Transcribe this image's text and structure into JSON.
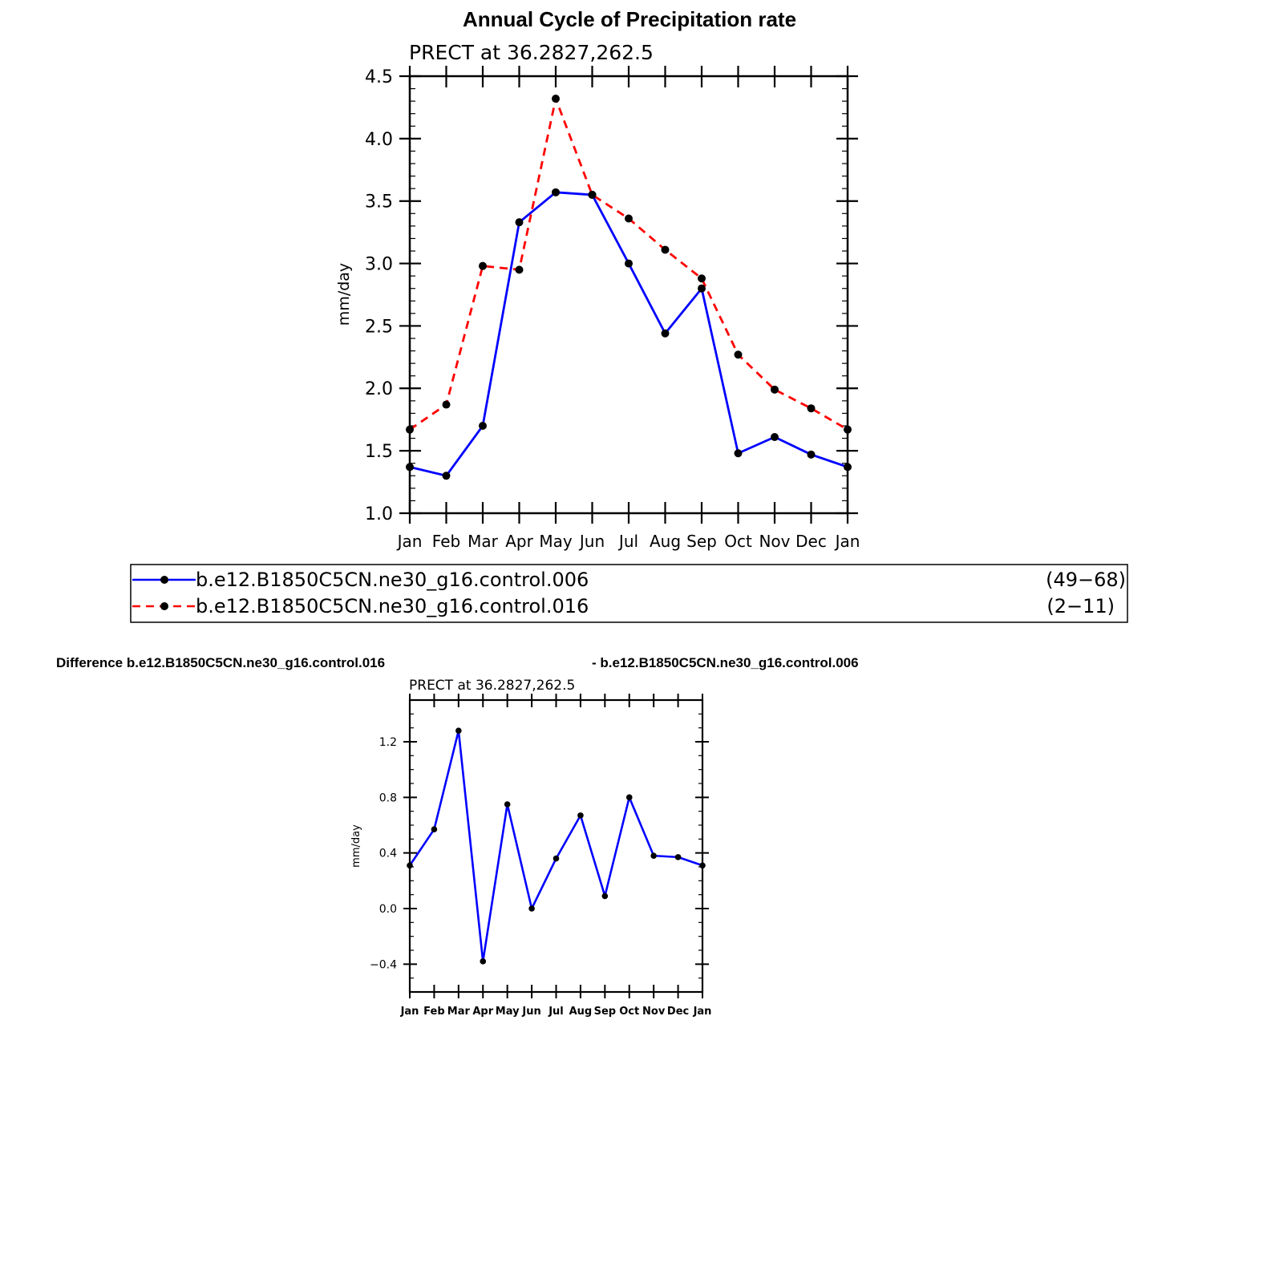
{
  "page": {
    "title": "Annual Cycle of Precipitation rate"
  },
  "chart_data": [
    {
      "type": "line",
      "subtitle": "PRECT at 36.2827,262.5",
      "xlabel": "",
      "ylabel": "mm/day",
      "categories": [
        "Jan",
        "Feb",
        "Mar",
        "Apr",
        "May",
        "Jun",
        "Jul",
        "Aug",
        "Sep",
        "Oct",
        "Nov",
        "Dec",
        "Jan"
      ],
      "ylim": [
        1.0,
        4.5
      ],
      "yticks": [
        1.0,
        1.5,
        2.0,
        2.5,
        3.0,
        3.5,
        4.0,
        4.5
      ],
      "ytick_labels": [
        "1.0",
        "1.5",
        "2.0",
        "2.5",
        "3.0",
        "3.5",
        "4.0",
        "4.5"
      ],
      "grid": false,
      "series": [
        {
          "name": "b.e12.B1850C5CN.ne30_g16.control.006",
          "years": "(49−68)",
          "color": "#0000ff",
          "dash": "solid",
          "values": [
            1.37,
            1.3,
            1.7,
            3.33,
            3.57,
            3.55,
            3.0,
            2.44,
            2.8,
            1.48,
            1.61,
            1.47,
            1.37
          ]
        },
        {
          "name": "b.e12.B1850C5CN.ne30_g16.control.016",
          "years": "(2−11)",
          "color": "#ff0000",
          "dash": "dashed",
          "values": [
            1.67,
            1.87,
            2.98,
            2.95,
            4.32,
            3.55,
            3.36,
            3.11,
            2.88,
            2.27,
            1.99,
            1.84,
            1.67
          ]
        }
      ]
    },
    {
      "type": "line",
      "title_left": "Difference b.e12.B1850C5CN.ne30_g16.control.016",
      "title_right": "- b.e12.B1850C5CN.ne30_g16.control.006",
      "subtitle": "PRECT at 36.2827,262.5",
      "xlabel": "",
      "ylabel": "mm/day",
      "categories": [
        "Jan",
        "Feb",
        "Mar",
        "Apr",
        "May",
        "Jun",
        "Jul",
        "Aug",
        "Sep",
        "Oct",
        "Nov",
        "Dec",
        "Jan"
      ],
      "ylim": [
        -0.6,
        1.5
      ],
      "yticks": [
        -0.4,
        0.0,
        0.4,
        0.8,
        1.2
      ],
      "ytick_labels": [
        "−0.4",
        "0.0",
        "0.4",
        "0.8",
        "1.2"
      ],
      "grid": false,
      "series": [
        {
          "color": "#0000ff",
          "dash": "solid",
          "values": [
            0.31,
            0.57,
            1.28,
            -0.38,
            0.75,
            0.0,
            0.36,
            0.67,
            0.09,
            0.8,
            0.38,
            0.37,
            0.31
          ]
        }
      ]
    }
  ]
}
